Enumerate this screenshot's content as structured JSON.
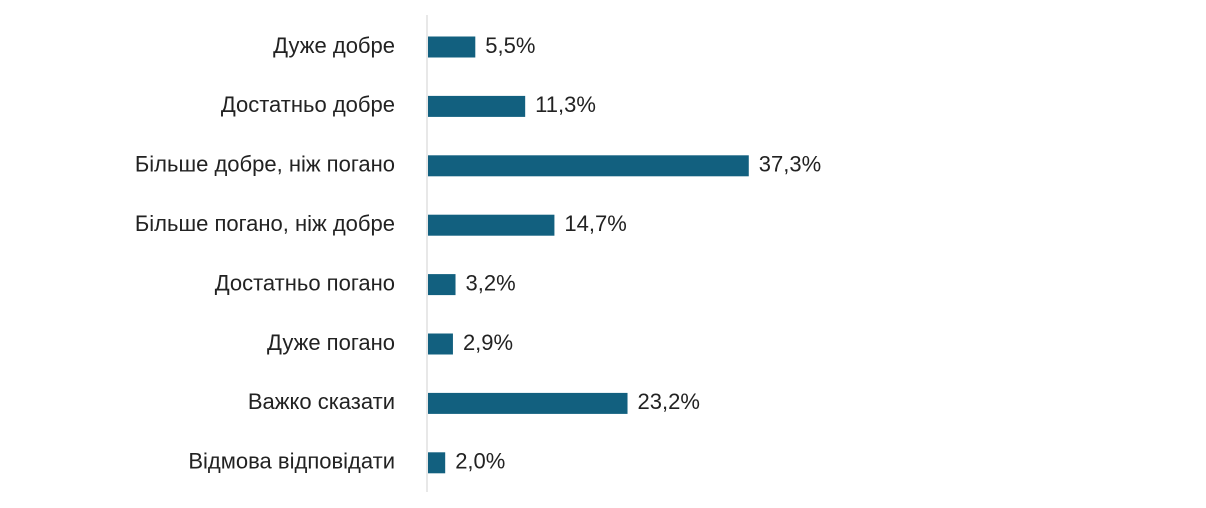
{
  "chart_data": {
    "type": "bar",
    "orientation": "horizontal",
    "categories": [
      "Дуже добре",
      "Достатньо добре",
      "Більше добре, ніж погано",
      "Більше погано, ніж добре",
      "Достатньо погано",
      "Дуже погано",
      "Важко сказати",
      "Відмова відповідати"
    ],
    "values": [
      5.5,
      11.3,
      37.3,
      14.7,
      3.2,
      2.9,
      23.2,
      2.0
    ],
    "value_labels": [
      "5,5%",
      "11,3%",
      "37,3%",
      "14,7%",
      "3,2%",
      "2,9%",
      "23,2%",
      "2,0%"
    ],
    "color": "#12607f"
  }
}
